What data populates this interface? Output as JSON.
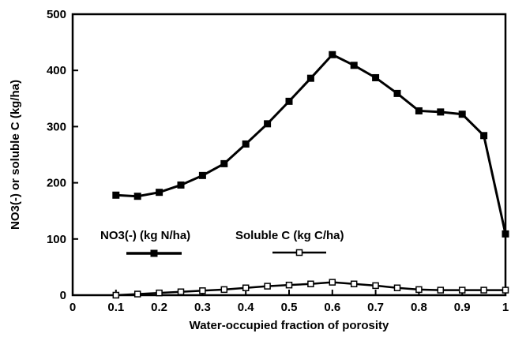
{
  "chart_data": {
    "type": "line",
    "xlabel": "Water-occupied fraction of porosity",
    "ylabel": "NO3(-) or soluble C (kg/ha)",
    "xlim": [
      0,
      1
    ],
    "ylim": [
      0,
      500
    ],
    "xticks": [
      "0",
      "0.1",
      "0.2",
      "0.3",
      "0.4",
      "0.5",
      "0.6",
      "0.7",
      "0.8",
      "0.9",
      "1"
    ],
    "yticks": [
      "0",
      "100",
      "200",
      "300",
      "400",
      "500"
    ],
    "grid": false,
    "legend_position": "bottom-left",
    "series": [
      {
        "name": "NO3(-) (kg N/ha)",
        "marker": "filled-square",
        "color": "#000000",
        "x": [
          0.1,
          0.15,
          0.2,
          0.25,
          0.3,
          0.35,
          0.4,
          0.45,
          0.5,
          0.55,
          0.6,
          0.65,
          0.7,
          0.75,
          0.8,
          0.85,
          0.9,
          0.95,
          1.0
        ],
        "y": [
          178,
          176,
          183,
          196,
          213,
          234,
          269,
          305,
          345,
          386,
          428,
          409,
          387,
          359,
          328,
          326,
          322,
          284,
          109
        ]
      },
      {
        "name": "Soluble C (kg C/ha)",
        "marker": "open-square",
        "color": "#000000",
        "x": [
          0.1,
          0.15,
          0.2,
          0.25,
          0.3,
          0.35,
          0.4,
          0.45,
          0.5,
          0.55,
          0.6,
          0.65,
          0.7,
          0.75,
          0.8,
          0.85,
          0.9,
          0.95,
          1.0
        ],
        "y": [
          0,
          2,
          4,
          6,
          8,
          10,
          13,
          16,
          18,
          20,
          23,
          20,
          17,
          13,
          10,
          9,
          9,
          9,
          9
        ]
      }
    ]
  }
}
